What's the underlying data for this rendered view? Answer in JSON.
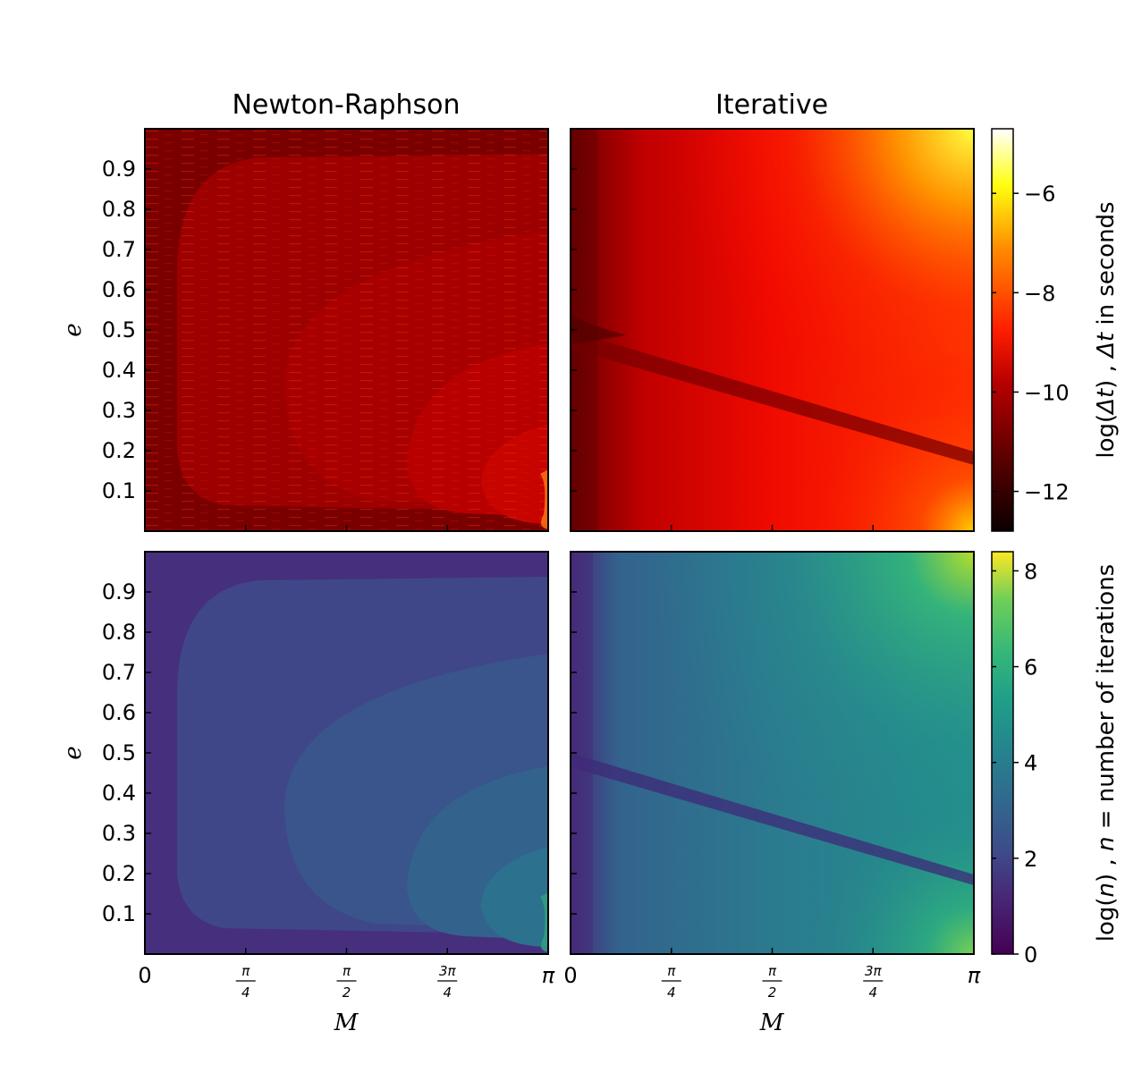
{
  "chart_data": [
    {
      "type": "heatmap",
      "title": "Newton-Raphson",
      "xlabel": "",
      "ylabel": "e",
      "xlim": [
        0,
        3.14159
      ],
      "ylim": [
        0,
        1
      ],
      "quantity": "log(Δt)",
      "colormap": "hot",
      "yticks": [
        0.1,
        0.2,
        0.3,
        0.4,
        0.5,
        0.6,
        0.7,
        0.8,
        0.9
      ],
      "ytick_labels": [
        "0.1",
        "0.2",
        "0.3",
        "0.4",
        "0.5",
        "0.6",
        "0.7",
        "0.8",
        "0.9"
      ]
    },
    {
      "type": "heatmap",
      "title": "Iterative",
      "xlabel": "",
      "ylabel": "",
      "xlim": [
        0,
        3.14159
      ],
      "ylim": [
        0,
        1
      ],
      "quantity": "log(Δt)",
      "colormap": "hot"
    },
    {
      "type": "heatmap",
      "title": "",
      "xlabel": "M",
      "ylabel": "e",
      "xlim": [
        0,
        3.14159
      ],
      "ylim": [
        0,
        1
      ],
      "quantity": "log(n)",
      "colormap": "viridis",
      "xtick_labels": [
        "0",
        "π/4",
        "π/2",
        "3π/4",
        "π"
      ],
      "yticks": [
        0.1,
        0.2,
        0.3,
        0.4,
        0.5,
        0.6,
        0.7,
        0.8,
        0.9
      ],
      "ytick_labels": [
        "0.1",
        "0.2",
        "0.3",
        "0.4",
        "0.5",
        "0.6",
        "0.7",
        "0.8",
        "0.9"
      ]
    },
    {
      "type": "heatmap",
      "title": "",
      "xlabel": "M",
      "ylabel": "",
      "xlim": [
        0,
        3.14159
      ],
      "ylim": [
        0,
        1
      ],
      "quantity": "log(n)",
      "colormap": "viridis",
      "xtick_labels": [
        "0",
        "π/4",
        "π/2",
        "3π/4",
        "π"
      ]
    }
  ],
  "colorbars": {
    "top": {
      "label": "log(Δt) , Δt in seconds",
      "label_parts": [
        "log(",
        "Δt",
        ") , ",
        "Δt",
        " in seconds"
      ],
      "range": [
        -12.8,
        -4.7
      ],
      "ticks": [
        -12,
        -10,
        -8,
        -6
      ],
      "tick_labels": [
        "−12",
        "−10",
        "−8",
        "−6"
      ],
      "colormap": "hot"
    },
    "bottom": {
      "label": "log(n) , n = number of iterations",
      "label_parts": [
        "log(",
        "n",
        ") , ",
        "n",
        " = number of iterations"
      ],
      "range": [
        0,
        8.4
      ],
      "ticks": [
        0,
        2,
        4,
        6,
        8
      ],
      "tick_labels": [
        "0",
        "2",
        "4",
        "6",
        "8"
      ],
      "colormap": "viridis"
    }
  }
}
